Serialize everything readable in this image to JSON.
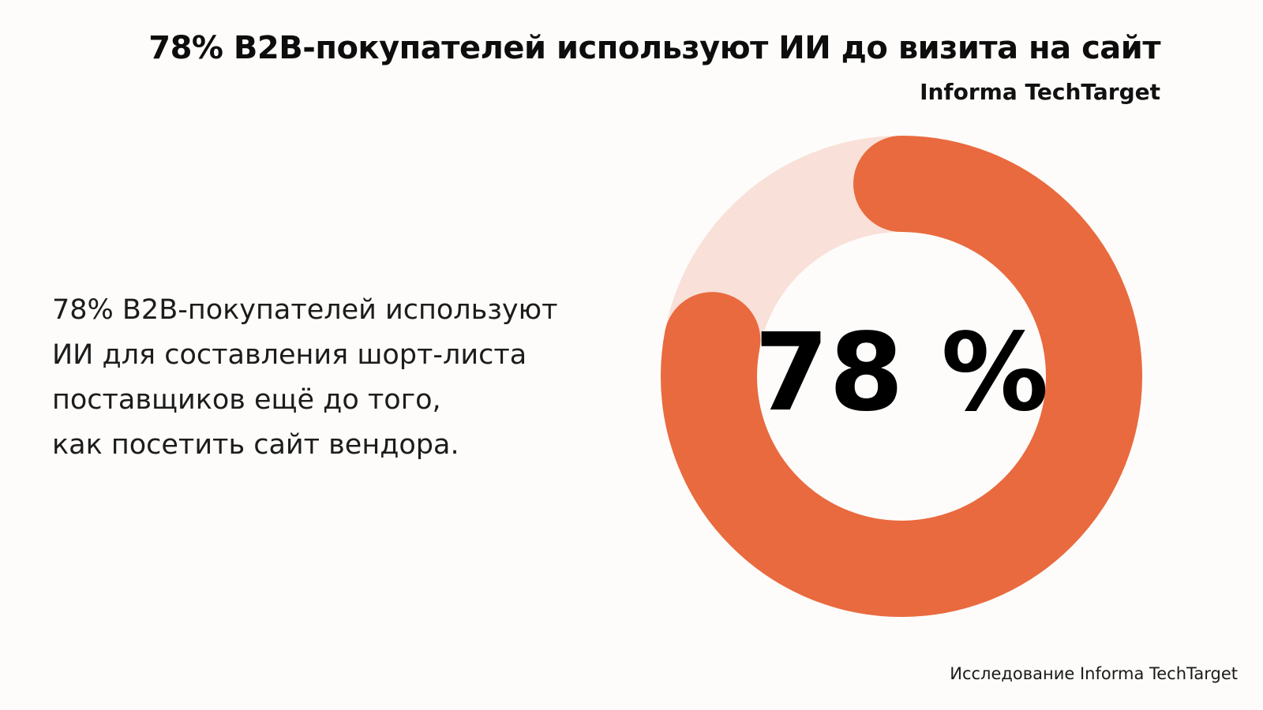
{
  "header": {
    "title": "78% B2B-покупателей используют ИИ до визита на сайт",
    "subtitle": "Informa TechTarget"
  },
  "description": {
    "lines": [
      "78% B2B-покупателей используют",
      "ИИ для составления шорт-листа",
      "поставщиков ещё до того,",
      "как посетить сайт вендора."
    ]
  },
  "footer": {
    "source": "Исследование Informa TechTarget"
  },
  "chart_data": {
    "type": "pie",
    "variant": "donut",
    "value": 78,
    "max": 100,
    "center_label": "78 %",
    "colors": {
      "value": "#e96a3e",
      "remainder": "#f9e0d8"
    }
  }
}
